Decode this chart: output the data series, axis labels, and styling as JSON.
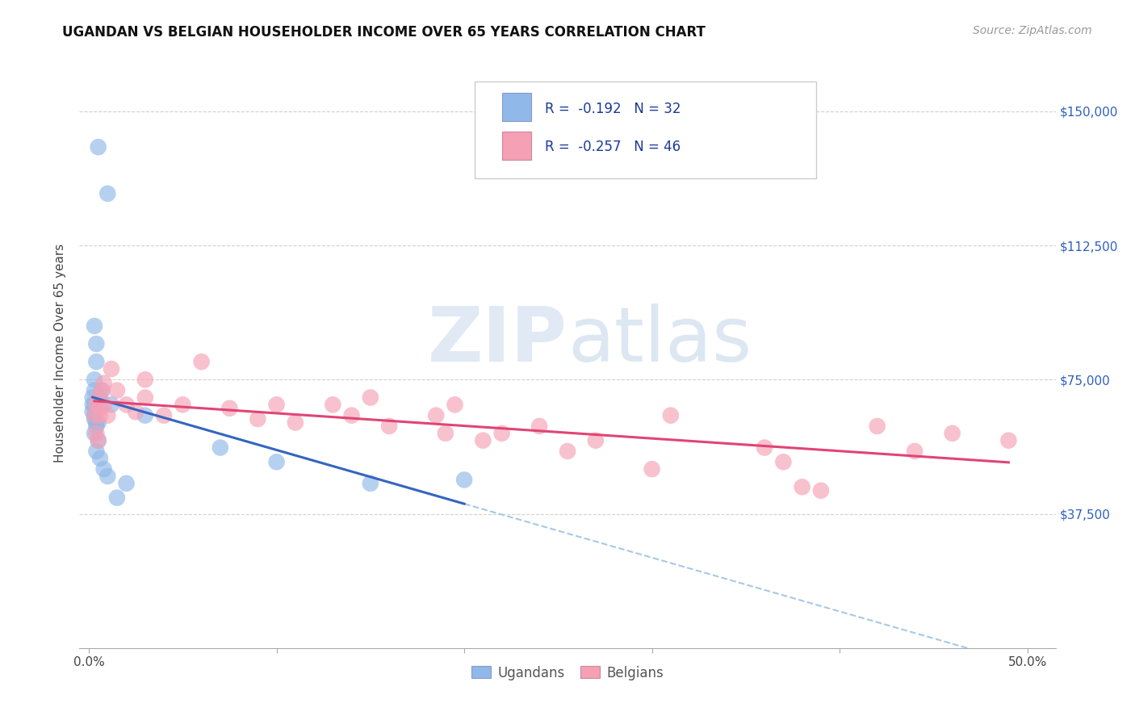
{
  "title": "UGANDAN VS BELGIAN HOUSEHOLDER INCOME OVER 65 YEARS CORRELATION CHART",
  "source": "Source: ZipAtlas.com",
  "ylabel": "Householder Income Over 65 years",
  "xlabel_ticks": [
    "0.0%",
    "",
    "",
    "",
    "",
    "50.0%"
  ],
  "xlabel_vals": [
    0.0,
    0.1,
    0.2,
    0.3,
    0.4,
    0.5
  ],
  "ytick_labels": [
    "$37,500",
    "$75,000",
    "$112,500",
    "$150,000"
  ],
  "ytick_vals": [
    37500,
    75000,
    112500,
    150000
  ],
  "ylim": [
    0,
    165000
  ],
  "xlim": [
    -0.005,
    0.515
  ],
  "ugandan_R": -0.192,
  "ugandan_N": 32,
  "belgian_R": -0.257,
  "belgian_N": 46,
  "ugandan_color": "#90b8e8",
  "belgian_color": "#f5a0b5",
  "ugandan_line_color": "#3465c0",
  "belgian_line_color": "#e04575",
  "dashed_line_color": "#a8c8e8",
  "background_color": "#ffffff",
  "grid_color": "#cccccc",
  "ugandan_x": [
    0.005,
    0.01,
    0.003,
    0.003,
    0.004,
    0.004,
    0.003,
    0.003,
    0.002,
    0.002,
    0.002,
    0.003,
    0.004,
    0.003,
    0.003,
    0.004,
    0.005,
    0.006,
    0.007,
    0.005,
    0.004,
    0.006,
    0.008,
    0.01,
    0.012,
    0.02,
    0.015,
    0.03,
    0.07,
    0.1,
    0.15,
    0.2
  ],
  "ugandan_y": [
    140000,
    127000,
    68000,
    90000,
    85000,
    80000,
    75000,
    72000,
    70000,
    68000,
    66000,
    64000,
    63000,
    65000,
    60000,
    62000,
    63000,
    70000,
    72000,
    58000,
    55000,
    53000,
    50000,
    48000,
    68000,
    46000,
    42000,
    65000,
    56000,
    52000,
    46000,
    47000
  ],
  "belgian_x": [
    0.003,
    0.004,
    0.005,
    0.004,
    0.005,
    0.006,
    0.007,
    0.008,
    0.006,
    0.008,
    0.01,
    0.012,
    0.015,
    0.02,
    0.025,
    0.03,
    0.03,
    0.04,
    0.05,
    0.06,
    0.075,
    0.09,
    0.1,
    0.11,
    0.13,
    0.14,
    0.15,
    0.16,
    0.185,
    0.19,
    0.195,
    0.21,
    0.22,
    0.24,
    0.255,
    0.27,
    0.3,
    0.31,
    0.36,
    0.37,
    0.38,
    0.39,
    0.42,
    0.44,
    0.46,
    0.49
  ],
  "belgian_y": [
    65000,
    60000,
    58000,
    68000,
    70000,
    67000,
    72000,
    74000,
    65000,
    68000,
    65000,
    78000,
    72000,
    68000,
    66000,
    75000,
    70000,
    65000,
    68000,
    80000,
    67000,
    64000,
    68000,
    63000,
    68000,
    65000,
    70000,
    62000,
    65000,
    60000,
    68000,
    58000,
    60000,
    62000,
    55000,
    58000,
    50000,
    65000,
    56000,
    52000,
    45000,
    44000,
    62000,
    55000,
    60000,
    58000
  ]
}
